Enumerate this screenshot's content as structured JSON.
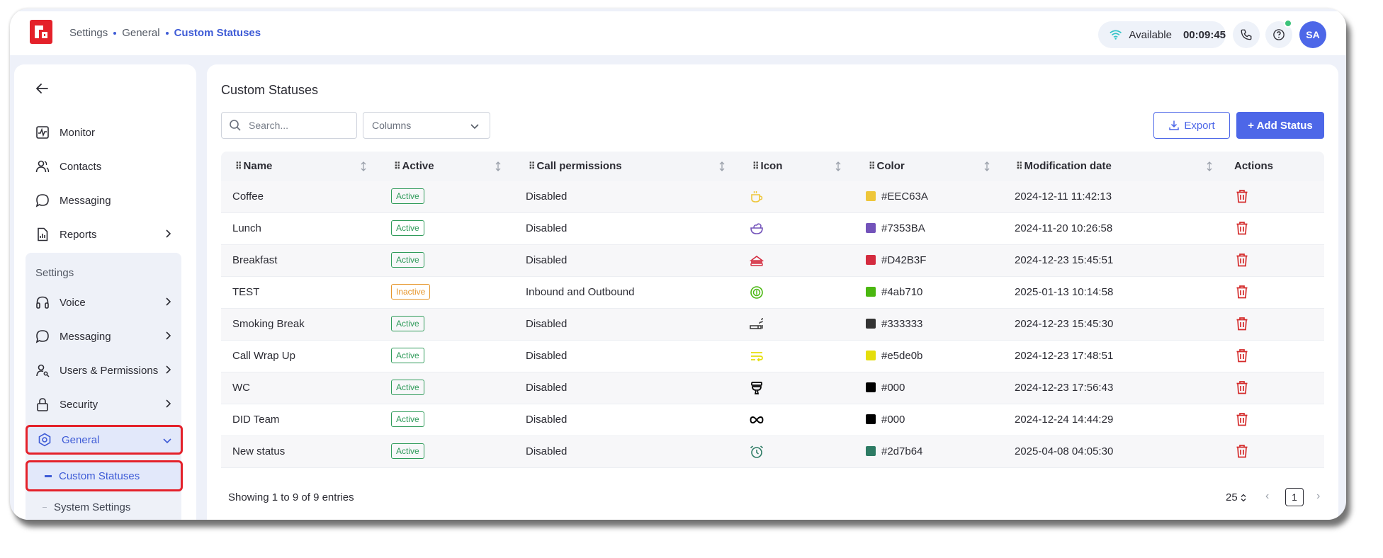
{
  "header": {
    "breadcrumb": [
      "Settings",
      "General",
      "Custom Statuses"
    ],
    "status_label": "Available",
    "timer": "00:09:45",
    "avatar_initials": "SA"
  },
  "sidebar": {
    "items": [
      {
        "label": "Monitor",
        "icon": "monitor-icon"
      },
      {
        "label": "Contacts",
        "icon": "contacts-icon"
      },
      {
        "label": "Messaging",
        "icon": "chat-bubble-icon"
      },
      {
        "label": "Reports",
        "icon": "report-icon"
      }
    ],
    "settings_label": "Settings",
    "settings_items": [
      {
        "label": "Voice",
        "icon": "headset-icon"
      },
      {
        "label": "Messaging",
        "icon": "chat-bubble-icon"
      },
      {
        "label": "Users & Permissions",
        "icon": "user-key-icon"
      },
      {
        "label": "Security",
        "icon": "lock-icon"
      },
      {
        "label": "General",
        "icon": "hexagon-gear-icon"
      }
    ],
    "sub_items": [
      {
        "label": "Custom Statuses"
      },
      {
        "label": "System Settings"
      }
    ]
  },
  "main": {
    "title": "Custom Statuses",
    "search_placeholder": "Search...",
    "columns_label": "Columns",
    "export_label": "Export",
    "add_label": "+ Add Status",
    "columns": [
      "Name",
      "Active",
      "Call permissions",
      "Icon",
      "Color",
      "Modification date",
      "Actions"
    ],
    "rows": [
      {
        "name": "Coffee",
        "active": "Active",
        "perm": "Disabled",
        "icon": "coffee-cup-icon",
        "color": "#EEC63A",
        "date": "2024-12-11 11:42:13"
      },
      {
        "name": "Lunch",
        "active": "Active",
        "perm": "Disabled",
        "icon": "salad-bowl-icon",
        "color": "#7353BA",
        "date": "2024-11-20 10:26:58"
      },
      {
        "name": "Breakfast",
        "active": "Active",
        "perm": "Disabled",
        "icon": "sandwich-icon",
        "color": "#D42B3F",
        "date": "2024-12-23 15:45:51"
      },
      {
        "name": "TEST",
        "active": "Inactive",
        "perm": "Inbound and Outbound",
        "icon": "coin-cycle-icon",
        "color": "#4ab710",
        "date": "2025-01-13 10:14:58"
      },
      {
        "name": "Smoking Break",
        "active": "Active",
        "perm": "Disabled",
        "icon": "cigarette-icon",
        "color": "#333333",
        "date": "2024-12-23 15:45:30"
      },
      {
        "name": "Call Wrap Up",
        "active": "Active",
        "perm": "Disabled",
        "icon": "wrap-lines-icon",
        "color": "#e5de0b",
        "date": "2024-12-23 17:48:51"
      },
      {
        "name": "WC",
        "active": "Active",
        "perm": "Disabled",
        "icon": "toilet-icon",
        "color": "#000",
        "date": "2024-12-23 17:56:43"
      },
      {
        "name": "DID Team",
        "active": "Active",
        "perm": "Disabled",
        "icon": "infinity-icon",
        "color": "#000",
        "date": "2024-12-24 14:44:29"
      },
      {
        "name": "New status",
        "active": "Active",
        "perm": "Disabled",
        "icon": "alarm-clock-icon",
        "color": "#2d7b64",
        "date": "2025-04-08 04:05:30"
      }
    ],
    "footer_text": "Showing 1 to 9 of 9 entries",
    "page_size": "25",
    "current_page": "1"
  },
  "colors": {
    "accent": "#4d67e8",
    "delete": "#d42b2b",
    "active_badge": "#2f9b5a",
    "inactive_badge": "#e6962b"
  }
}
